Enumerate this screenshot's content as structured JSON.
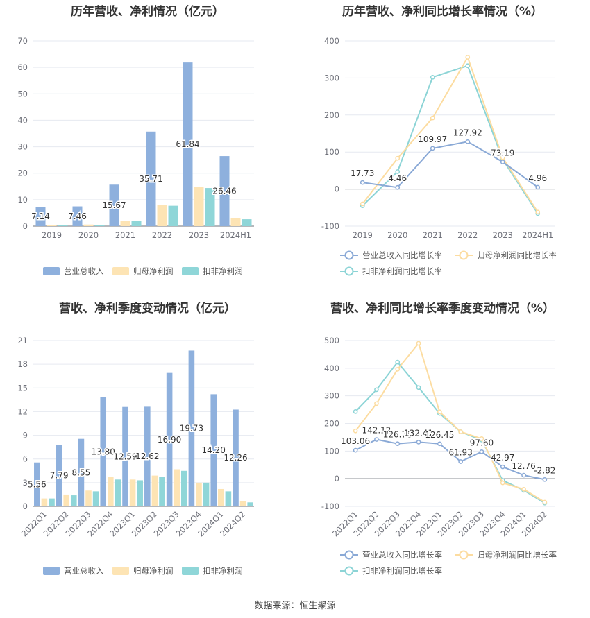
{
  "source_text": "数据来源：恒生聚源",
  "colors": {
    "revenue": "#8eb0dd",
    "net_profit": "#fde4b4",
    "deducted_profit": "#8fd6d8",
    "grid": "#e6e9f0",
    "axis": "#6e7079"
  },
  "chart_data": [
    {
      "type": "bar",
      "title": "历年营收、净利情况（亿元）",
      "categories": [
        "2019",
        "2020",
        "2021",
        "2022",
        "2023",
        "2024H1"
      ],
      "ylim": [
        0,
        70
      ],
      "yticks": [
        0,
        10,
        20,
        30,
        40,
        50,
        60,
        70
      ],
      "legend_position": "bottom",
      "series": [
        {
          "name": "营业总收入",
          "values": [
            7.14,
            7.46,
            15.67,
            35.71,
            61.84,
            26.46
          ],
          "labels": [
            "7.14",
            "7.46",
            "15.67",
            "35.71",
            "61.84",
            "26.46"
          ]
        },
        {
          "name": "归母净利润",
          "values": [
            0.3,
            0.6,
            2.0,
            8.0,
            14.8,
            2.9
          ]
        },
        {
          "name": "扣非净利润",
          "values": [
            0.3,
            0.5,
            2.0,
            7.7,
            14.4,
            2.6
          ]
        }
      ]
    },
    {
      "type": "line",
      "title": "历年营收、净利同比增长率情况（%）",
      "categories": [
        "2019",
        "2020",
        "2021",
        "2022",
        "2023",
        "2024H1"
      ],
      "ylim": [
        -100,
        400
      ],
      "yticks": [
        -100,
        0,
        100,
        200,
        300,
        400
      ],
      "legend_position": "bottom",
      "series": [
        {
          "name": "营业总收入同比增长率",
          "values": [
            17.73,
            4.46,
            109.97,
            127.92,
            73.19,
            4.96
          ],
          "labels": [
            "17.73",
            "4.46",
            "109.97",
            "127.92",
            "73.19",
            "4.96"
          ]
        },
        {
          "name": "归母净利润同比增长率",
          "values": [
            -40,
            83,
            192,
            356,
            85,
            -62
          ]
        },
        {
          "name": "扣非净利润同比增长率",
          "values": [
            -45,
            47,
            302,
            333,
            80,
            -66
          ]
        }
      ]
    },
    {
      "type": "bar",
      "title": "营收、净利季度变动情况（亿元）",
      "categories": [
        "2022Q1",
        "2022Q2",
        "2022Q3",
        "2022Q4",
        "2023Q1",
        "2023Q2",
        "2023Q3",
        "2023Q4",
        "2024Q1",
        "2024Q2"
      ],
      "ylim": [
        0,
        21
      ],
      "yticks": [
        0,
        3,
        6,
        9,
        12,
        15,
        18,
        21
      ],
      "legend_position": "bottom",
      "series": [
        {
          "name": "营业总收入",
          "values": [
            5.56,
            7.79,
            8.55,
            13.8,
            12.59,
            12.62,
            16.9,
            19.73,
            14.2,
            12.26
          ],
          "labels": [
            "5.56",
            "7.79",
            "8.55",
            "13.80",
            "12.59",
            "12.62",
            "16.90",
            "19.73",
            "14.20",
            "12.26"
          ]
        },
        {
          "name": "归母净利润",
          "values": [
            1.0,
            1.5,
            2.0,
            3.7,
            3.4,
            3.9,
            4.7,
            3.0,
            2.2,
            0.7
          ]
        },
        {
          "name": "扣非净利润",
          "values": [
            1.0,
            1.4,
            1.9,
            3.4,
            3.3,
            3.7,
            4.5,
            3.0,
            1.9,
            0.5
          ]
        }
      ]
    },
    {
      "type": "line",
      "title": "营收、净利同比增长率季度变动情况（%）",
      "categories": [
        "2022Q1",
        "2022Q2",
        "2022Q3",
        "2022Q4",
        "2023Q1",
        "2023Q2",
        "2023Q3",
        "2023Q4",
        "2024Q1",
        "2024Q2"
      ],
      "ylim": [
        -100,
        500
      ],
      "yticks": [
        -100,
        0,
        100,
        200,
        300,
        400,
        500
      ],
      "legend_position": "bottom",
      "series": [
        {
          "name": "营业总收入同比增长率",
          "values": [
            103.06,
            142.12,
            126.78,
            132.41,
            126.45,
            61.93,
            97.6,
            42.97,
            12.76,
            -2.82
          ],
          "labels": [
            "103.06",
            "142.12",
            "126.78",
            "132.41",
            "126.45",
            "61.93",
            "97.60",
            "42.97",
            "12.76",
            "-2.82"
          ]
        },
        {
          "name": "归母净利润同比增长率",
          "values": [
            173,
            272,
            396,
            490,
            242,
            170,
            145,
            -15,
            -38,
            -85
          ]
        },
        {
          "name": "扣非净利润同比增长率",
          "values": [
            243,
            322,
            422,
            330,
            236,
            170,
            140,
            -6,
            -42,
            -88
          ]
        }
      ]
    }
  ]
}
